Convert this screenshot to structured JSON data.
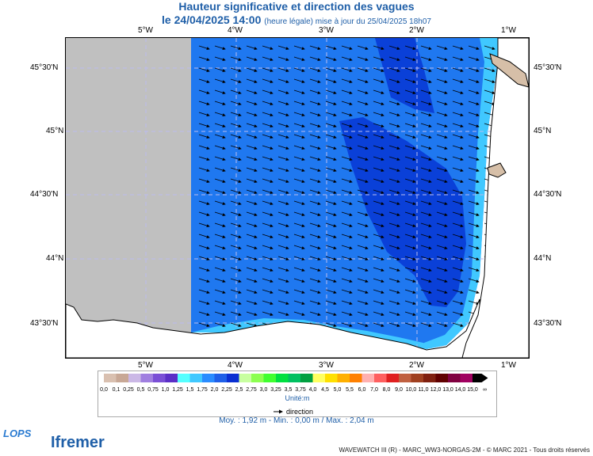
{
  "title": "Hauteur significative et direction des vagues",
  "subtitle": {
    "datetime": "le 24/04/2025 14:00",
    "note": "(heure légale) mise à jour du 25/04/2025 18h07"
  },
  "lon_labels": [
    "5°W",
    "4°W",
    "3°W",
    "2°W",
    "1°W"
  ],
  "lat_labels": [
    "45°30'N",
    "45°N",
    "44°30'N",
    "44°N",
    "43°30'N"
  ],
  "legend": {
    "values": [
      "0,0",
      "0,1",
      "0,25",
      "0,5",
      "0,75",
      "1,0",
      "1,25",
      "1,5",
      "1,75",
      "2,0",
      "2,25",
      "2,5",
      "2,75",
      "3,0",
      "3,25",
      "3,5",
      "3,75",
      "4,0",
      "4,5",
      "5,0",
      "5,5",
      "6,0",
      "7,0",
      "8,0",
      "9,0",
      "10,0",
      "11,0",
      "12,0",
      "13,0",
      "14,0",
      "15,0",
      "∞"
    ],
    "colors": [
      "#d9c0b0",
      "#c8a896",
      "#cbb8e6",
      "#a07fe0",
      "#7a4fd6",
      "#5b2fc7",
      "#55ffff",
      "#40c8ff",
      "#2a8cff",
      "#1f5fe8",
      "#0a2fd2",
      "#c8ffa0",
      "#8cff50",
      "#40ff30",
      "#00e040",
      "#00c060",
      "#00a040",
      "#ffff60",
      "#ffe000",
      "#ffb000",
      "#ff8000",
      "#ffb0b0",
      "#ff6060",
      "#e02020",
      "#c06040",
      "#a04020",
      "#802010",
      "#600000",
      "#800040",
      "#a00060",
      "#000000"
    ],
    "unit": "Unité:m",
    "direction_label": "direction"
  },
  "stats": "Moy. : 1,92 m   -   Min. : 0,00 m / Max. : 2,04 m",
  "footer": "WAVEWATCH III (R) - MARC_WW3-NORGAS-2M - © MARC 2021 - Tous droits réservés",
  "logos": {
    "lops": "LOPS",
    "ifremer": "Ifremer"
  },
  "colors": {
    "land": "#d6bfa8",
    "nodata": "#c0c0c0",
    "sea_main": "#1f78f0",
    "sea_deep": "#0a40d8",
    "sea_coast": "#40c8ff"
  }
}
